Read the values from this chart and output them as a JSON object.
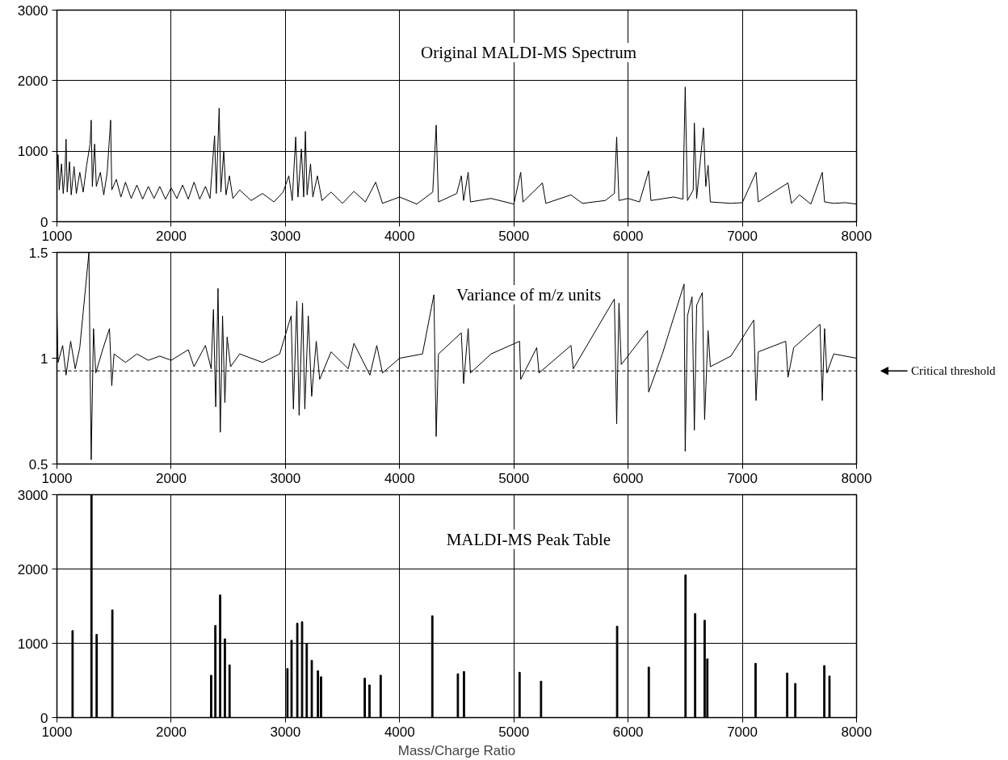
{
  "chart_data": [
    {
      "type": "line",
      "title": "Original MALDI-MS Spectrum",
      "xlim": [
        1000,
        8000
      ],
      "xticks": [
        1000,
        2000,
        3000,
        4000,
        5000,
        6000,
        7000,
        8000
      ],
      "ylim": [
        0,
        3000
      ],
      "yticks": [
        0,
        1000,
        2000,
        3000
      ],
      "grid": true,
      "x": [
        1000,
        1010,
        1020,
        1040,
        1055,
        1070,
        1080,
        1090,
        1110,
        1125,
        1150,
        1170,
        1200,
        1230,
        1260,
        1290,
        1300,
        1310,
        1330,
        1345,
        1380,
        1410,
        1440,
        1470,
        1480,
        1520,
        1560,
        1600,
        1650,
        1700,
        1750,
        1800,
        1850,
        1900,
        1950,
        2000,
        2050,
        2100,
        2150,
        2200,
        2250,
        2300,
        2340,
        2380,
        2395,
        2420,
        2435,
        2460,
        2480,
        2510,
        2540,
        2600,
        2700,
        2800,
        2900,
        2980,
        3030,
        3060,
        3090,
        3110,
        3140,
        3160,
        3175,
        3190,
        3220,
        3240,
        3280,
        3320,
        3400,
        3500,
        3600,
        3700,
        3790,
        3850,
        4000,
        4150,
        4290,
        4320,
        4340,
        4500,
        4540,
        4560,
        4600,
        4620,
        4800,
        5000,
        5060,
        5080,
        5250,
        5280,
        5500,
        5600,
        5800,
        5880,
        5900,
        5920,
        6000,
        6100,
        6180,
        6200,
        6400,
        6480,
        6500,
        6520,
        6570,
        6580,
        6600,
        6660,
        6680,
        6700,
        6720,
        6900,
        7000,
        7120,
        7140,
        7400,
        7430,
        7500,
        7600,
        7700,
        7720,
        7800,
        7900,
        8000
      ],
      "series": [
        {
          "color": "#000000",
          "values": [
            700,
            950,
            450,
            820,
            400,
            700,
            1170,
            420,
            850,
            380,
            780,
            400,
            700,
            420,
            800,
            1100,
            1440,
            500,
            1100,
            500,
            700,
            380,
            700,
            1440,
            450,
            600,
            350,
            560,
            330,
            520,
            320,
            500,
            330,
            500,
            320,
            480,
            330,
            520,
            320,
            560,
            320,
            500,
            330,
            1220,
            400,
            1610,
            420,
            1000,
            380,
            650,
            330,
            450,
            300,
            400,
            280,
            420,
            650,
            300,
            1200,
            350,
            1030,
            350,
            1280,
            380,
            820,
            350,
            650,
            300,
            420,
            260,
            430,
            280,
            560,
            260,
            350,
            250,
            420,
            1370,
            280,
            400,
            650,
            300,
            700,
            280,
            330,
            250,
            700,
            280,
            550,
            260,
            380,
            260,
            300,
            400,
            1200,
            300,
            330,
            280,
            720,
            300,
            350,
            320,
            1910,
            300,
            450,
            1400,
            330,
            1330,
            500,
            800,
            280,
            260,
            270,
            700,
            280,
            550,
            260,
            380,
            250,
            700,
            280,
            260,
            270,
            250
          ]
        }
      ]
    },
    {
      "type": "line",
      "title": "Variance of m/z units",
      "xlim": [
        1000,
        8000
      ],
      "xticks": [
        1000,
        2000,
        3000,
        4000,
        5000,
        6000,
        7000,
        8000
      ],
      "ylim": [
        0.5,
        1.5
      ],
      "yticks": [
        0.5,
        1,
        1.5
      ],
      "grid": "x",
      "ref_lines": [
        {
          "axis": "y",
          "value": 0.94,
          "label": "Critical threshold",
          "line_style": "dashed",
          "color": "#000000"
        }
      ],
      "x": [
        1000,
        1010,
        1050,
        1080,
        1120,
        1160,
        1200,
        1280,
        1290,
        1300,
        1320,
        1340,
        1400,
        1460,
        1480,
        1500,
        1600,
        1700,
        1800,
        1900,
        2000,
        2150,
        2200,
        2300,
        2350,
        2370,
        2390,
        2410,
        2430,
        2450,
        2470,
        2490,
        2520,
        2600,
        2800,
        2950,
        3050,
        3070,
        3100,
        3120,
        3150,
        3170,
        3200,
        3230,
        3270,
        3300,
        3400,
        3550,
        3600,
        3740,
        3800,
        3850,
        4000,
        4200,
        4300,
        4320,
        4340,
        4540,
        4560,
        4600,
        4620,
        4800,
        5050,
        5060,
        5200,
        5220,
        5500,
        5520,
        5880,
        5900,
        5920,
        5940,
        6170,
        6180,
        6300,
        6490,
        6500,
        6520,
        6560,
        6580,
        6600,
        6650,
        6670,
        6700,
        6720,
        6900,
        7100,
        7120,
        7140,
        7380,
        7400,
        7450,
        7680,
        7700,
        7720,
        7740,
        7800,
        8000
      ],
      "series": [
        {
          "color": "#000000",
          "values": [
            1.22,
            0.98,
            1.06,
            0.92,
            1.08,
            0.95,
            1.05,
            1.5,
            0.97,
            0.52,
            1.14,
            0.93,
            1.04,
            1.14,
            0.87,
            1.02,
            0.98,
            1.02,
            0.99,
            1.01,
            0.99,
            1.04,
            0.96,
            1.06,
            0.95,
            1.23,
            0.77,
            1.33,
            0.65,
            1.2,
            0.79,
            1.1,
            0.96,
            1.02,
            0.98,
            1.02,
            1.2,
            0.76,
            1.27,
            0.73,
            1.26,
            0.76,
            1.2,
            0.82,
            1.08,
            0.9,
            1.03,
            0.95,
            1.07,
            0.92,
            1.06,
            0.93,
            1.0,
            1.02,
            1.3,
            0.63,
            1.02,
            1.12,
            0.88,
            1.14,
            0.93,
            1.02,
            1.08,
            0.9,
            1.05,
            0.93,
            1.06,
            0.95,
            1.28,
            0.69,
            1.26,
            0.97,
            1.13,
            0.84,
            1.02,
            1.35,
            0.56,
            1.2,
            1.29,
            0.66,
            1.25,
            1.31,
            0.71,
            1.13,
            0.96,
            1.01,
            1.18,
            0.8,
            1.03,
            1.08,
            0.91,
            1.05,
            1.16,
            0.8,
            1.14,
            0.93,
            1.02,
            1.0
          ]
        }
      ]
    },
    {
      "type": "bar",
      "title": "MALDI-MS Peak Table",
      "xlabel": "Mass/Charge Ratio",
      "xlim": [
        1000,
        8000
      ],
      "xticks": [
        1000,
        2000,
        3000,
        4000,
        5000,
        6000,
        7000,
        8000
      ],
      "ylim": [
        0,
        3000
      ],
      "yticks": [
        0,
        1000,
        2000,
        3000
      ],
      "grid": true,
      "x": [
        1137,
        1302,
        1348,
        1485,
        2350,
        2387,
        2429,
        2470,
        2511,
        3018,
        3054,
        3104,
        3146,
        3187,
        3231,
        3285,
        3312,
        3695,
        3736,
        3834,
        4286,
        4510,
        4563,
        5050,
        5238,
        5904,
        6181,
        6503,
        6587,
        6670,
        6694,
        7116,
        7393,
        7464,
        7718,
        7763
      ],
      "series": [
        {
          "color": "#000000",
          "values": [
            1170,
            3000,
            1120,
            1450,
            570,
            1240,
            1650,
            1060,
            710,
            660,
            1040,
            1270,
            1290,
            1000,
            770,
            630,
            550,
            530,
            440,
            570,
            1370,
            590,
            620,
            610,
            490,
            1230,
            680,
            1920,
            1400,
            1310,
            790,
            730,
            600,
            460,
            700,
            560
          ]
        }
      ]
    }
  ]
}
